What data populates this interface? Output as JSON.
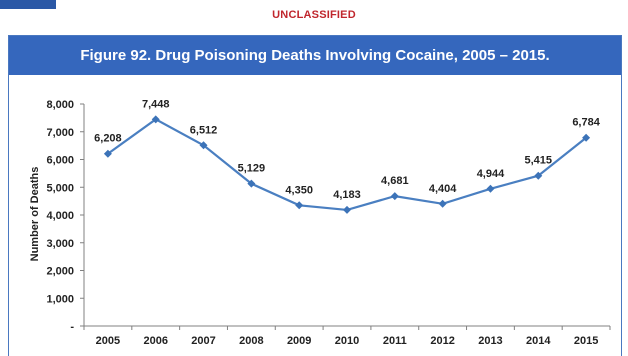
{
  "header": {
    "classification": "UNCLASSIFIED"
  },
  "colors": {
    "accent": "#3567bd",
    "classification": "#c0262d",
    "series_line": "#4a7fc1",
    "marker": "#3c73b8",
    "axis": "#808080"
  },
  "chart_data": {
    "type": "line",
    "title": "Figure 92. Drug Poisoning Deaths Involving Cocaine, 2005 – 2015.",
    "xlabel": "",
    "ylabel": "Number of Deaths",
    "categories": [
      "2005",
      "2006",
      "2007",
      "2008",
      "2009",
      "2010",
      "2011",
      "2012",
      "2013",
      "2014",
      "2015"
    ],
    "series": [
      {
        "values": [
          6208,
          7448,
          6512,
          5129,
          4350,
          4183,
          4681,
          4404,
          4944,
          5415,
          6784
        ],
        "data_labels": [
          "6,208",
          "7,448",
          "6,512",
          "5,129",
          "4,350",
          "4,183",
          "4,681",
          "4,404",
          "4,944",
          "5,415",
          "6,784"
        ]
      }
    ],
    "y_ticks": [
      0,
      1000,
      2000,
      3000,
      4000,
      5000,
      6000,
      7000,
      8000
    ],
    "y_tick_labels": [
      "-",
      "1,000",
      "2,000",
      "3,000",
      "4,000",
      "5,000",
      "6,000",
      "7,000",
      "8,000"
    ],
    "ylim": [
      0,
      8000
    ],
    "grid": false,
    "legend": "none"
  }
}
